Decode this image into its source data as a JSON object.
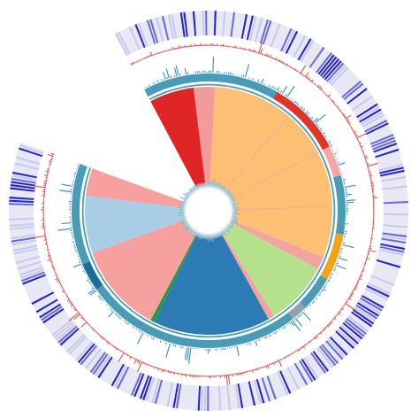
{
  "colors": {
    "heatmap_dark": "#2424c8",
    "heatmap_light": "#c9c9ee",
    "heatmap_track": "#e8e8f4",
    "bars_red": "#e05a5a",
    "bars_blue": "#3b8fc4",
    "outer_band": "#4a9bb5",
    "outer_band_orange": "#f0a417",
    "outer_band_red": "#e0352a",
    "outer_band_gray": "#8fa3ad",
    "center_ring": "#b8d4e0"
  },
  "clades": [
    {
      "name": "red_clade",
      "color": "#e02525",
      "start": -28,
      "end": -7
    },
    {
      "name": "pink_a",
      "color": "#f29b9b",
      "start": -7,
      "end": 3
    },
    {
      "name": "orange_clade",
      "color": "#fdbf74",
      "start": 3,
      "end": 112
    },
    {
      "name": "pink_b",
      "color": "#f4a3a3",
      "start": 112,
      "end": 118
    },
    {
      "name": "green_clade",
      "color": "#b5e08c",
      "start": 118,
      "end": 148
    },
    {
      "name": "pink_c",
      "color": "#f4a3a3",
      "start": 148,
      "end": 151
    },
    {
      "name": "blue_clade",
      "color": "#2c7bb5",
      "start": 151,
      "end": 206
    },
    {
      "name": "darkgreen_line",
      "color": "#2a9a3a",
      "start": 206,
      "end": 208
    },
    {
      "name": "pink_d",
      "color": "#f6a0a0",
      "start": 208,
      "end": 250
    },
    {
      "name": "lightblue_clade",
      "color": "#a9cde4",
      "start": 250,
      "end": 277
    },
    {
      "name": "pink_e",
      "color": "#f6a0a0",
      "start": 277,
      "end": 290
    }
  ],
  "outer_band_segments": [
    {
      "color": "#4a9bb5",
      "start": -28,
      "end": 30
    },
    {
      "color": "#e0352a",
      "start": 30,
      "end": 62
    },
    {
      "color": "#f5a6a6",
      "start": 62,
      "end": 75
    },
    {
      "color": "#4a9bb5",
      "start": 75,
      "end": 100
    },
    {
      "color": "#f0a417",
      "start": 100,
      "end": 120
    },
    {
      "color": "#4a9bb5",
      "start": 120,
      "end": 135
    },
    {
      "color": "#8fa3ad",
      "start": 135,
      "end": 142
    },
    {
      "color": "#4a9bb5",
      "start": 142,
      "end": 235
    },
    {
      "color": "#1a6e96",
      "start": 235,
      "end": 247
    },
    {
      "color": "#4a9bb5",
      "start": 247,
      "end": 290
    }
  ],
  "gap": {
    "start": 290,
    "end": 332
  }
}
